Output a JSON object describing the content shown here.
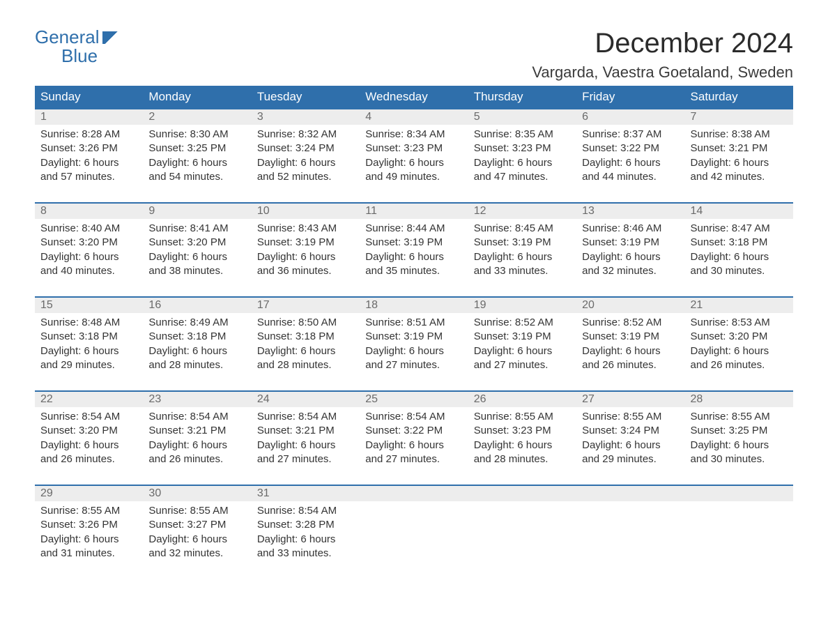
{
  "logo": {
    "line1": "General",
    "line2": "Blue"
  },
  "title": "December 2024",
  "location": "Vargarda, Vaestra Goetaland, Sweden",
  "colors": {
    "header_bg": "#2f6fab",
    "header_text": "#ffffff",
    "daynum_bg": "#ededed",
    "daynum_text": "#6a6a6a",
    "body_text": "#343434",
    "page_bg": "#ffffff"
  },
  "fonts": {
    "title_pt": 40,
    "location_pt": 22,
    "weekday_pt": 17,
    "daynum_pt": 16,
    "detail_pt": 15
  },
  "weekdays": [
    "Sunday",
    "Monday",
    "Tuesday",
    "Wednesday",
    "Thursday",
    "Friday",
    "Saturday"
  ],
  "labels": {
    "sunrise": "Sunrise",
    "sunset": "Sunset",
    "daylight": "Daylight"
  },
  "weeks": [
    [
      {
        "day": "1",
        "sunrise": "8:28 AM",
        "sunset": "3:26 PM",
        "daylight": "6 hours and 57 minutes."
      },
      {
        "day": "2",
        "sunrise": "8:30 AM",
        "sunset": "3:25 PM",
        "daylight": "6 hours and 54 minutes."
      },
      {
        "day": "3",
        "sunrise": "8:32 AM",
        "sunset": "3:24 PM",
        "daylight": "6 hours and 52 minutes."
      },
      {
        "day": "4",
        "sunrise": "8:34 AM",
        "sunset": "3:23 PM",
        "daylight": "6 hours and 49 minutes."
      },
      {
        "day": "5",
        "sunrise": "8:35 AM",
        "sunset": "3:23 PM",
        "daylight": "6 hours and 47 minutes."
      },
      {
        "day": "6",
        "sunrise": "8:37 AM",
        "sunset": "3:22 PM",
        "daylight": "6 hours and 44 minutes."
      },
      {
        "day": "7",
        "sunrise": "8:38 AM",
        "sunset": "3:21 PM",
        "daylight": "6 hours and 42 minutes."
      }
    ],
    [
      {
        "day": "8",
        "sunrise": "8:40 AM",
        "sunset": "3:20 PM",
        "daylight": "6 hours and 40 minutes."
      },
      {
        "day": "9",
        "sunrise": "8:41 AM",
        "sunset": "3:20 PM",
        "daylight": "6 hours and 38 minutes."
      },
      {
        "day": "10",
        "sunrise": "8:43 AM",
        "sunset": "3:19 PM",
        "daylight": "6 hours and 36 minutes."
      },
      {
        "day": "11",
        "sunrise": "8:44 AM",
        "sunset": "3:19 PM",
        "daylight": "6 hours and 35 minutes."
      },
      {
        "day": "12",
        "sunrise": "8:45 AM",
        "sunset": "3:19 PM",
        "daylight": "6 hours and 33 minutes."
      },
      {
        "day": "13",
        "sunrise": "8:46 AM",
        "sunset": "3:19 PM",
        "daylight": "6 hours and 32 minutes."
      },
      {
        "day": "14",
        "sunrise": "8:47 AM",
        "sunset": "3:18 PM",
        "daylight": "6 hours and 30 minutes."
      }
    ],
    [
      {
        "day": "15",
        "sunrise": "8:48 AM",
        "sunset": "3:18 PM",
        "daylight": "6 hours and 29 minutes."
      },
      {
        "day": "16",
        "sunrise": "8:49 AM",
        "sunset": "3:18 PM",
        "daylight": "6 hours and 28 minutes."
      },
      {
        "day": "17",
        "sunrise": "8:50 AM",
        "sunset": "3:18 PM",
        "daylight": "6 hours and 28 minutes."
      },
      {
        "day": "18",
        "sunrise": "8:51 AM",
        "sunset": "3:19 PM",
        "daylight": "6 hours and 27 minutes."
      },
      {
        "day": "19",
        "sunrise": "8:52 AM",
        "sunset": "3:19 PM",
        "daylight": "6 hours and 27 minutes."
      },
      {
        "day": "20",
        "sunrise": "8:52 AM",
        "sunset": "3:19 PM",
        "daylight": "6 hours and 26 minutes."
      },
      {
        "day": "21",
        "sunrise": "8:53 AM",
        "sunset": "3:20 PM",
        "daylight": "6 hours and 26 minutes."
      }
    ],
    [
      {
        "day": "22",
        "sunrise": "8:54 AM",
        "sunset": "3:20 PM",
        "daylight": "6 hours and 26 minutes."
      },
      {
        "day": "23",
        "sunrise": "8:54 AM",
        "sunset": "3:21 PM",
        "daylight": "6 hours and 26 minutes."
      },
      {
        "day": "24",
        "sunrise": "8:54 AM",
        "sunset": "3:21 PM",
        "daylight": "6 hours and 27 minutes."
      },
      {
        "day": "25",
        "sunrise": "8:54 AM",
        "sunset": "3:22 PM",
        "daylight": "6 hours and 27 minutes."
      },
      {
        "day": "26",
        "sunrise": "8:55 AM",
        "sunset": "3:23 PM",
        "daylight": "6 hours and 28 minutes."
      },
      {
        "day": "27",
        "sunrise": "8:55 AM",
        "sunset": "3:24 PM",
        "daylight": "6 hours and 29 minutes."
      },
      {
        "day": "28",
        "sunrise": "8:55 AM",
        "sunset": "3:25 PM",
        "daylight": "6 hours and 30 minutes."
      }
    ],
    [
      {
        "day": "29",
        "sunrise": "8:55 AM",
        "sunset": "3:26 PM",
        "daylight": "6 hours and 31 minutes."
      },
      {
        "day": "30",
        "sunrise": "8:55 AM",
        "sunset": "3:27 PM",
        "daylight": "6 hours and 32 minutes."
      },
      {
        "day": "31",
        "sunrise": "8:54 AM",
        "sunset": "3:28 PM",
        "daylight": "6 hours and 33 minutes."
      },
      null,
      null,
      null,
      null
    ]
  ]
}
